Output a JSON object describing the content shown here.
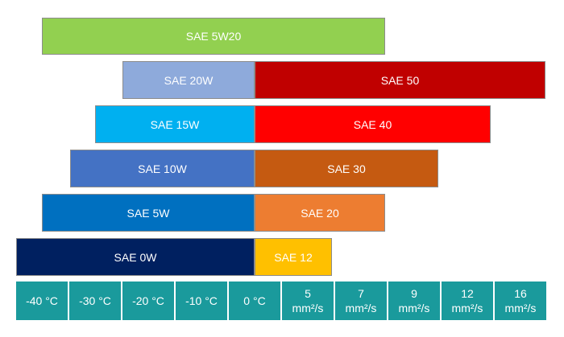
{
  "bars": [
    {
      "label": "SAE 5W20",
      "color": "#92d050"
    },
    {
      "label": "SAE 20W",
      "color": "#8eaadb"
    },
    {
      "label": "SAE 50",
      "color": "#c00000"
    },
    {
      "label": "SAE 15W",
      "color": "#00b0f0"
    },
    {
      "label": "SAE 40",
      "color": "#ff0000"
    },
    {
      "label": "SAE 10W",
      "color": "#4472c4"
    },
    {
      "label": "SAE 30",
      "color": "#c55a11"
    },
    {
      "label": "SAE 5W",
      "color": "#0070c0"
    },
    {
      "label": "SAE 20",
      "color": "#ed7d31"
    },
    {
      "label": "SAE 0W",
      "color": "#002060"
    },
    {
      "label": "SAE 12",
      "color": "#ffc000"
    }
  ],
  "scale": [
    [
      "-40 °C"
    ],
    [
      "-30 °C"
    ],
    [
      "-20 °C"
    ],
    [
      "-10 °C"
    ],
    [
      "0 °C"
    ],
    [
      "5",
      "mm²/s"
    ],
    [
      "7",
      "mm²/s"
    ],
    [
      "9",
      "mm²/s"
    ],
    [
      "12",
      "mm²/s"
    ],
    [
      "16",
      "mm²/s"
    ]
  ]
}
